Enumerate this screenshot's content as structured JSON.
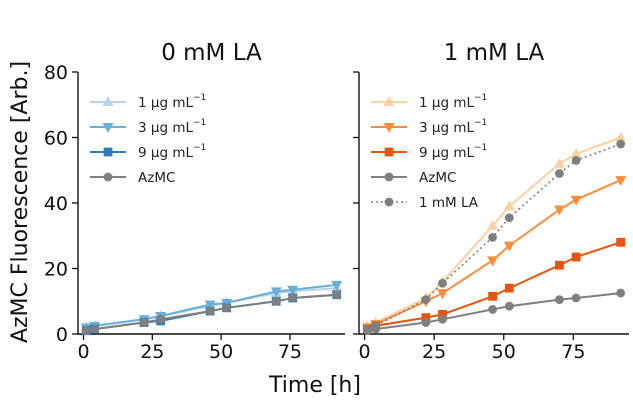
{
  "chart_data": {
    "type": "line",
    "ylabel": "AzMC Fluorescence [Arb.]",
    "xlabel": "Time [h]",
    "xlim": [
      -2,
      95
    ],
    "ylim": [
      0,
      80
    ],
    "xticks": [
      0,
      25,
      50,
      75
    ],
    "yticks": [
      0,
      20,
      40,
      60,
      80
    ],
    "grid": false,
    "panels": [
      {
        "title": "0 mM LA",
        "legend_position": "upper-left",
        "series": [
          {
            "name": "1 μg mL",
            "unit_exponent": "−1",
            "color": "#b5d4ea",
            "marker": "triangle-up",
            "line": "solid",
            "x": [
              1,
              4,
              22,
              28,
              46,
              52,
              70,
              76,
              92
            ],
            "y": [
              2,
              2.5,
              4.5,
              5.5,
              8.5,
              9.5,
              12.5,
              13,
              14
            ]
          },
          {
            "name": "3 μg mL",
            "unit_exponent": "−1",
            "color": "#6aaed6",
            "marker": "triangle-down",
            "line": "solid",
            "x": [
              1,
              4,
              22,
              28,
              46,
              52,
              70,
              76,
              92
            ],
            "y": [
              2,
              2.5,
              4.5,
              5.5,
              9,
              9.5,
              13,
              13.5,
              15
            ]
          },
          {
            "name": "9 μg mL",
            "unit_exponent": "−1",
            "color": "#2f7ebc",
            "marker": "square",
            "line": "solid",
            "x": [
              1,
              4,
              22,
              28,
              46,
              52,
              70,
              76,
              92
            ],
            "y": [
              1,
              1.5,
              3.5,
              4,
              7,
              8,
              10,
              11,
              12
            ]
          },
          {
            "name": "AzMC",
            "unit_exponent": "",
            "color": "#7f7f7f",
            "marker": "circle",
            "line": "solid",
            "x": [
              1,
              4,
              22,
              28,
              46,
              52,
              70,
              76,
              92
            ],
            "y": [
              1,
              1.5,
              3.5,
              4.5,
              7,
              8,
              10,
              11,
              12
            ]
          }
        ]
      },
      {
        "title": "1 mM LA",
        "legend_position": "upper-left",
        "series": [
          {
            "name": "1 μg mL",
            "unit_exponent": "−1",
            "color": "#fdd0a2",
            "marker": "triangle-up",
            "line": "solid",
            "x": [
              1,
              4,
              22,
              28,
              46,
              52,
              70,
              76,
              92
            ],
            "y": [
              2.5,
              3.5,
              11,
              16,
              33,
              39,
              52,
              55,
              60
            ]
          },
          {
            "name": "3 μg mL",
            "unit_exponent": "−1",
            "color": "#fd8d3c",
            "marker": "triangle-down",
            "line": "solid",
            "x": [
              1,
              4,
              22,
              28,
              46,
              52,
              70,
              76,
              92
            ],
            "y": [
              2,
              3,
              10,
              12.5,
              22.5,
              27,
              38,
              41,
              47
            ]
          },
          {
            "name": "9 μg mL",
            "unit_exponent": "−1",
            "color": "#e6550d",
            "marker": "square",
            "line": "solid",
            "x": [
              1,
              4,
              22,
              28,
              46,
              52,
              70,
              76,
              92
            ],
            "y": [
              1.5,
              2.5,
              5,
              6,
              11.5,
              14,
              21,
              23.5,
              28
            ]
          },
          {
            "name": "AzMC",
            "unit_exponent": "",
            "color": "#7f7f7f",
            "marker": "circle",
            "line": "solid",
            "x": [
              1,
              4,
              22,
              28,
              46,
              52,
              70,
              76,
              92
            ],
            "y": [
              1,
              1.5,
              3.5,
              4.5,
              7.5,
              8.5,
              10.5,
              11,
              12.5
            ]
          },
          {
            "name": "1 mM LA",
            "unit_exponent": "",
            "color": "#7f7f7f",
            "marker": "circle",
            "line": "dotted",
            "x": [
              1,
              4,
              22,
              28,
              46,
              52,
              70,
              76,
              92
            ],
            "y": [
              1.5,
              2.5,
              10.5,
              15.5,
              29.5,
              35.5,
              49,
              53,
              58
            ]
          }
        ]
      }
    ]
  }
}
